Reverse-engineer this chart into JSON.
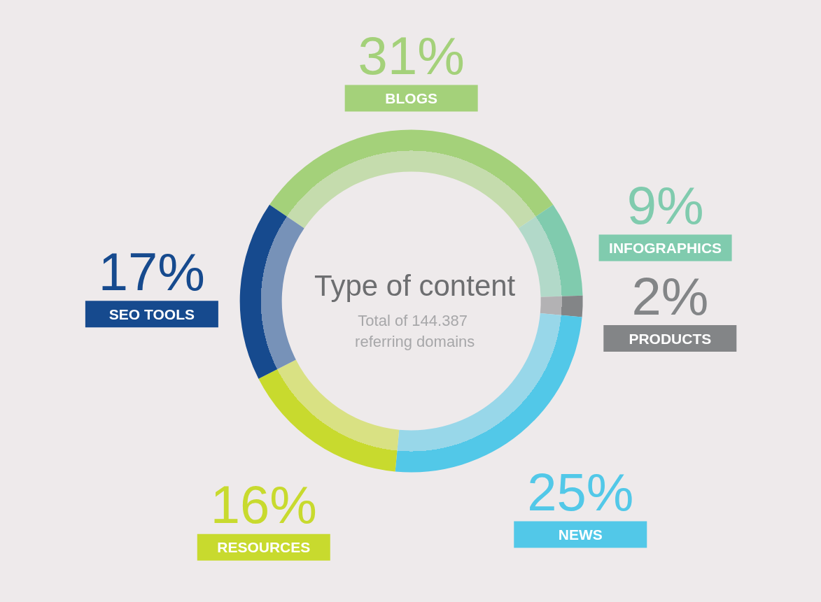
{
  "chart_data": {
    "type": "donut",
    "title": "Type of content",
    "subtitle": "Total of 144.387 referring domains",
    "categories": [
      "BLOGS",
      "INFOGRAPHICS",
      "PRODUCTS",
      "NEWS",
      "RESOURCES",
      "SEO TOOLS"
    ],
    "values": [
      31,
      9,
      2,
      25,
      16,
      17
    ],
    "value_labels": [
      "31%",
      "9%",
      "2%",
      "25%",
      "16%",
      "17%"
    ],
    "colors": [
      "#a4d17a",
      "#80cbae",
      "#838587",
      "#52c8e8",
      "#c8da2e",
      "#164a8e"
    ]
  }
}
